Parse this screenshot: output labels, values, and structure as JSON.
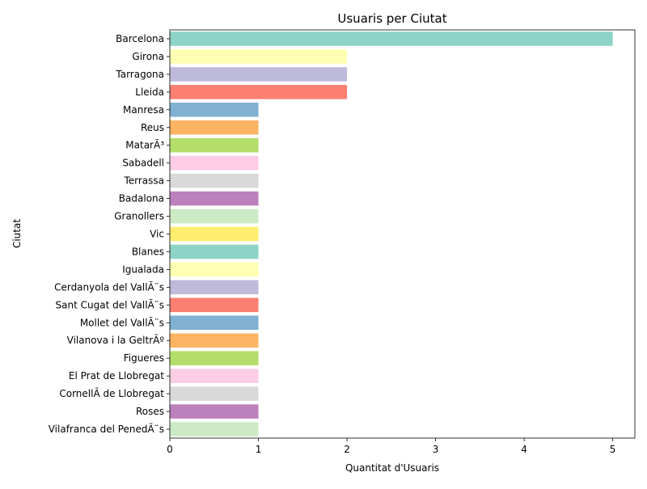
{
  "chart_data": {
    "type": "bar",
    "orientation": "horizontal",
    "title": "Usuaris per Ciutat",
    "xlabel": "Quantitat d'Usuaris",
    "ylabel": "Ciutat",
    "xlim": [
      0,
      5.25
    ],
    "x_ticks": [
      0,
      1,
      2,
      3,
      4,
      5
    ],
    "grid": false,
    "categories": [
      "Barcelona",
      "Girona",
      "Tarragona",
      "Lleida",
      "Manresa",
      "Reus",
      "MatarÃ³",
      "Sabadell",
      "Terrassa",
      "Badalona",
      "Granollers",
      "Vic",
      "Blanes",
      "Igualada",
      "Cerdanyola del VallÃ¨s",
      "Sant Cugat del VallÃ¨s",
      "Mollet del VallÃ¨s",
      "Vilanova i la GeltrÃº",
      "Figueres",
      "El Prat de Llobregat",
      "CornellÃ  de Llobregat",
      "Roses",
      "Vilafranca del PenedÃ¨s"
    ],
    "values": [
      5,
      2,
      2,
      2,
      1,
      1,
      1,
      1,
      1,
      1,
      1,
      1,
      1,
      1,
      1,
      1,
      1,
      1,
      1,
      1,
      1,
      1,
      1
    ],
    "colors": [
      "#8dd3c7",
      "#ffffb3",
      "#bebada",
      "#fb8072",
      "#80b1d3",
      "#fdb462",
      "#b3de69",
      "#fccde5",
      "#d9d9d9",
      "#bc80bd",
      "#ccebc5",
      "#ffed6f",
      "#8dd3c7",
      "#ffffb3",
      "#bebada",
      "#fb8072",
      "#80b1d3",
      "#fdb462",
      "#b3de69",
      "#fccde5",
      "#d9d9d9",
      "#bc80bd",
      "#ccebc5"
    ]
  }
}
